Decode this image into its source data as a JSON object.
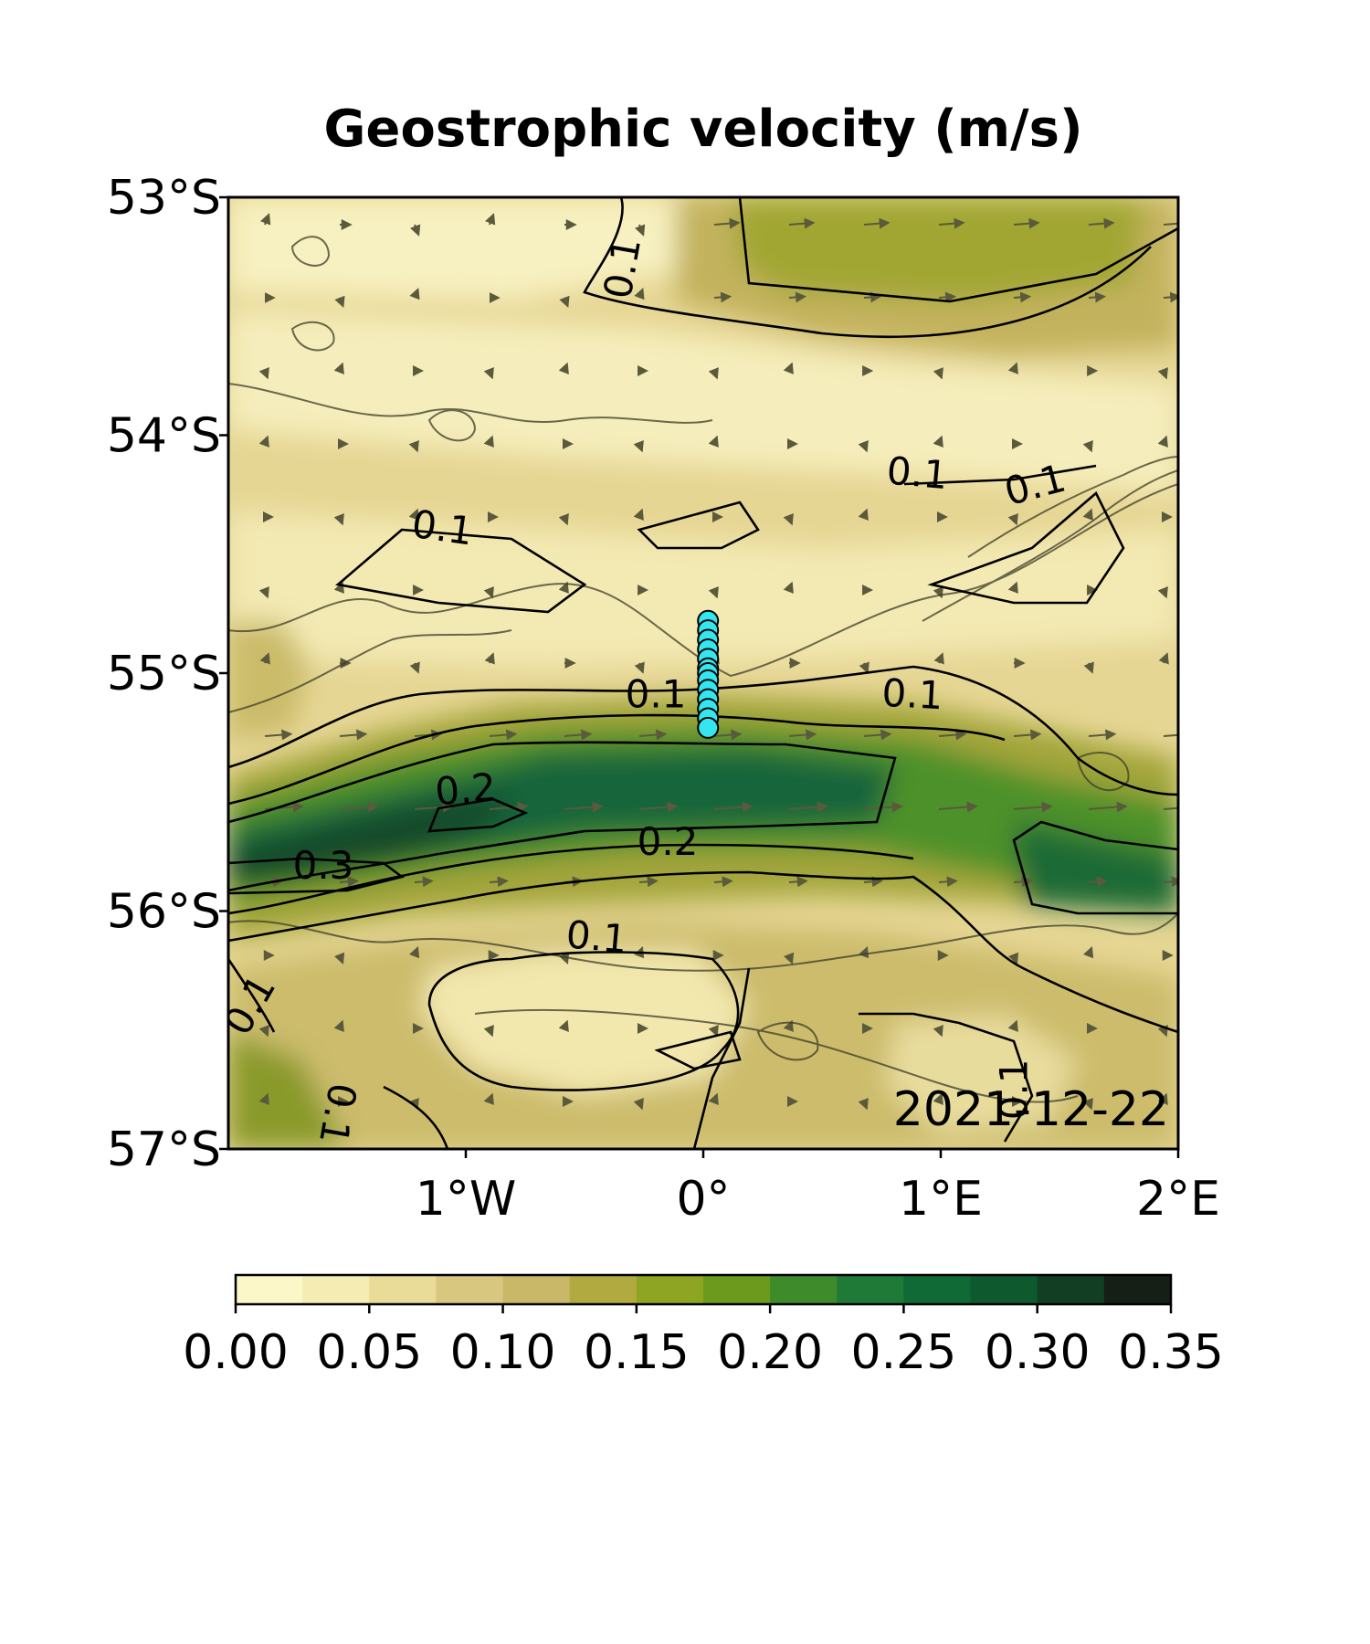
{
  "title": "Geostrophic velocity (m/s)",
  "date_label": "2021-12-22",
  "map": {
    "lat_range": [
      -57,
      -53
    ],
    "lon_range": [
      -2,
      2
    ],
    "lat_ticks": [
      {
        "value": -53,
        "label": "53°S"
      },
      {
        "value": -54,
        "label": "54°S"
      },
      {
        "value": -55,
        "label": "55°S"
      },
      {
        "value": -56,
        "label": "56°S"
      },
      {
        "value": -57,
        "label": "57°S"
      }
    ],
    "lon_ticks": [
      {
        "value": -1,
        "label": "1°W"
      },
      {
        "value": 0,
        "label": "0°"
      },
      {
        "value": 1,
        "label": "1°E"
      },
      {
        "value": 2,
        "label": "2°E"
      }
    ],
    "field": "geostrophic velocity magnitude",
    "units": "m/s"
  },
  "contour_labels": [
    {
      "text": "0.1",
      "lon": -0.33,
      "lat": -53.3,
      "rotate": -80
    },
    {
      "text": "0.1",
      "lon": -1.1,
      "lat": -54.4,
      "rotate": 8
    },
    {
      "text": "0.1",
      "lon": 0.9,
      "lat": -54.17,
      "rotate": 5
    },
    {
      "text": "0.1",
      "lon": 1.4,
      "lat": -54.22,
      "rotate": -15
    },
    {
      "text": "0.1",
      "lon": -0.2,
      "lat": -55.1,
      "rotate": 0
    },
    {
      "text": "0.1",
      "lon": 0.88,
      "lat": -55.1,
      "rotate": 3
    },
    {
      "text": "0.2",
      "lon": -1.0,
      "lat": -55.5,
      "rotate": -5
    },
    {
      "text": "0.2",
      "lon": -0.15,
      "lat": -55.72,
      "rotate": 0
    },
    {
      "text": "0.3",
      "lon": -1.6,
      "lat": -55.82,
      "rotate": 0
    },
    {
      "text": "0.1",
      "lon": -0.45,
      "lat": -56.12,
      "rotate": 5
    },
    {
      "text": "0.1",
      "lon": -1.9,
      "lat": -56.4,
      "rotate": -60
    },
    {
      "text": "0.1",
      "lon": 1.32,
      "lat": -56.75,
      "rotate": -90
    },
    {
      "text": "0.1",
      "lon": -1.55,
      "lat": -56.85,
      "rotate": 100
    }
  ],
  "station_points": {
    "lon": 0.02,
    "lat": [
      -54.78,
      -54.82,
      -54.86,
      -54.9,
      -54.94,
      -54.98,
      -55.0,
      -55.03,
      -55.07,
      -55.11,
      -55.15,
      -55.19,
      -55.23
    ],
    "color": "#33e6f0"
  },
  "colorbar": {
    "min": 0.0,
    "max": 0.35,
    "tick_values": [
      0.0,
      0.05,
      0.1,
      0.15,
      0.2,
      0.25,
      0.3,
      0.35
    ],
    "tick_labels": [
      "0.00",
      "0.05",
      "0.10",
      "0.15",
      "0.20",
      "0.25",
      "0.30",
      "0.35"
    ],
    "colors": [
      "#fbf7c9",
      "#f4ecb3",
      "#e9db98",
      "#d8c77e",
      "#c9b868",
      "#b0aa40",
      "#8ea423",
      "#6b9a1c",
      "#3e8b2c",
      "#1f7a38",
      "#0f6a35",
      "#0e5a2e",
      "#123f24",
      "#161f15"
    ]
  }
}
